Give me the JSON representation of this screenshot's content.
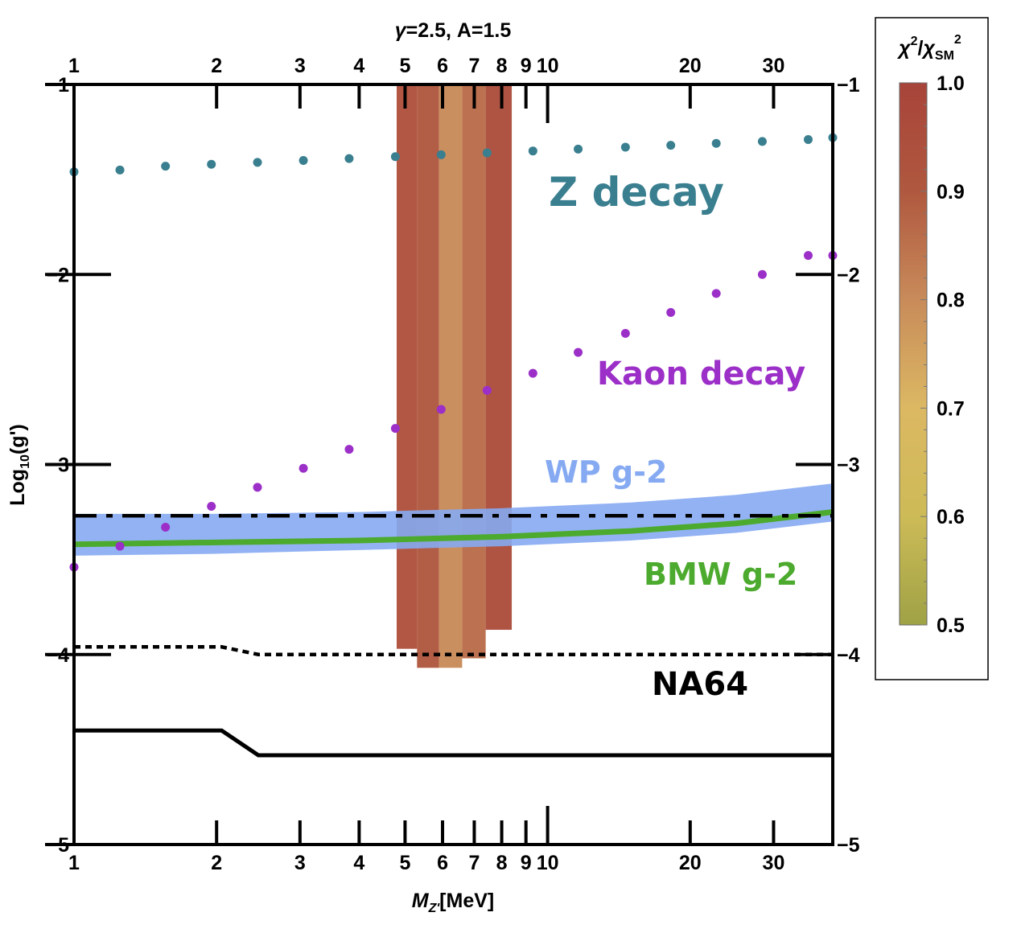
{
  "chart_data": {
    "type": "scatter",
    "title": "γ=2.5, A=1.5",
    "title_math": {
      "symbol": "γ",
      "rest": "=2.5, A=1.5"
    },
    "xlabel": "M_{Z'}[MeV]",
    "xlabel_math": {
      "base": "M",
      "sub": "Z'",
      "rest": "[MeV]"
    },
    "ylabel": "Log10(g')",
    "ylabel_math": {
      "pre": "Log",
      "sub": "10",
      "post": "(g')"
    },
    "x_scale": "log",
    "xlim": [
      1,
      40
    ],
    "ylim": [
      -5,
      -1
    ],
    "x_ticks_labeled": [
      1,
      2,
      3,
      4,
      5,
      6,
      7,
      8,
      9,
      10,
      20,
      30
    ],
    "x_tick_labels": [
      "1",
      "2",
      "3",
      "4",
      "5",
      "6",
      "7",
      "8",
      "9",
      "10",
      "20",
      "30"
    ],
    "y_ticks": [
      -1,
      -2,
      -3,
      -4,
      -5
    ],
    "y_tick_labels": [
      "−1",
      "−2",
      "−3",
      "−4",
      "−5"
    ],
    "colors": {
      "z_decay": "#3a7f8f",
      "kaon_decay": "#9b2fc8",
      "wp_band": "#86aaf2",
      "bmw_line": "#4caa2e",
      "na64": "#000000",
      "heat_high": "#a8443a",
      "heat_mid": "#c0855c",
      "heat_low": "#9fa246"
    },
    "series": [
      {
        "name": "Z decay",
        "kind": "points",
        "x": [
          1.0,
          1.25,
          1.56,
          1.95,
          2.44,
          3.05,
          3.81,
          4.77,
          5.96,
          7.45,
          9.31,
          11.6,
          14.6,
          18.2,
          22.7,
          28.4,
          35.5,
          40.0
        ],
        "y": [
          -1.46,
          -1.45,
          -1.43,
          -1.42,
          -1.41,
          -1.4,
          -1.39,
          -1.38,
          -1.37,
          -1.36,
          -1.35,
          -1.34,
          -1.33,
          -1.32,
          -1.31,
          -1.3,
          -1.29,
          -1.28
        ]
      },
      {
        "name": "Kaon decay",
        "kind": "points",
        "x": [
          1.0,
          1.25,
          1.56,
          1.95,
          2.44,
          3.05,
          3.81,
          4.77,
          5.96,
          7.45,
          9.31,
          11.6,
          14.6,
          18.2,
          22.7,
          28.4,
          35.5,
          40.0
        ],
        "y": [
          -3.54,
          -3.43,
          -3.33,
          -3.22,
          -3.12,
          -3.02,
          -2.92,
          -2.81,
          -2.71,
          -2.61,
          -2.52,
          -2.41,
          -2.31,
          -2.2,
          -2.1,
          -2.0,
          -1.9,
          -1.9
        ]
      },
      {
        "name": "WP g-2",
        "kind": "band",
        "x": [
          1,
          2,
          4,
          8,
          15,
          25,
          40
        ],
        "y_low": [
          -3.48,
          -3.47,
          -3.45,
          -3.43,
          -3.4,
          -3.36,
          -3.3
        ],
        "y_high": [
          -3.26,
          -3.26,
          -3.25,
          -3.23,
          -3.2,
          -3.16,
          -3.1
        ]
      },
      {
        "name": "BMW g-2",
        "kind": "line",
        "x": [
          1,
          2,
          4,
          8,
          15,
          25,
          40
        ],
        "y": [
          -3.42,
          -3.41,
          -3.4,
          -3.38,
          -3.35,
          -3.31,
          -3.25
        ]
      },
      {
        "name": "dash-dot limit",
        "kind": "line",
        "x": [
          1,
          40
        ],
        "y": [
          -3.27,
          -3.27
        ]
      },
      {
        "name": "NA64 (dotted)",
        "kind": "line",
        "x": [
          1,
          2.05,
          2.45,
          40
        ],
        "y": [
          -3.96,
          -3.96,
          -4.0,
          -4.0
        ]
      },
      {
        "name": "NA64",
        "kind": "line",
        "x": [
          1,
          2.05,
          2.45,
          40
        ],
        "y": [
          -4.4,
          -4.4,
          -4.53,
          -4.53
        ]
      }
    ],
    "heatmap": {
      "quantity": "chi^2 / chi_SM^2",
      "columns": [
        {
          "x_min": 4.8,
          "x_max": 5.3,
          "y_min": -3.97,
          "y_max": -1.0,
          "value": 0.93
        },
        {
          "x_min": 5.3,
          "x_max": 5.9,
          "y_min": -4.07,
          "y_max": -1.0,
          "value": 0.9
        },
        {
          "x_min": 5.9,
          "x_max": 6.6,
          "y_min": -4.07,
          "y_max": -1.0,
          "value": 0.8
        },
        {
          "x_min": 6.6,
          "x_max": 7.4,
          "y_min": -4.02,
          "y_max": -1.0,
          "value": 0.86
        },
        {
          "x_min": 7.4,
          "x_max": 8.4,
          "y_min": -3.87,
          "y_max": -1.0,
          "value": 0.95
        }
      ]
    },
    "colorbar": {
      "label": "χ²/χSM²",
      "label_math": {
        "chi": "χ",
        "sup": "2",
        "slash": "/",
        "chi2": "χ",
        "sub": "SM",
        "sup2": "2"
      },
      "min": 0.5,
      "max": 1.0,
      "ticks": [
        1.0,
        0.9,
        0.8,
        0.7,
        0.6,
        0.5
      ],
      "tick_labels": [
        "1.0",
        "0.9",
        "0.8",
        "0.7",
        "0.6",
        "0.5"
      ],
      "gradient": [
        "#9fa246",
        "#cdbb57",
        "#dcb863",
        "#c88b5a",
        "#b0583f",
        "#a8443a"
      ]
    },
    "annotations": [
      {
        "text": "Z decay",
        "series": "Z decay"
      },
      {
        "text": "Kaon decay",
        "series": "Kaon decay"
      },
      {
        "text": "WP g-2",
        "series": "WP g-2"
      },
      {
        "text": "BMW g-2",
        "series": "BMW g-2"
      },
      {
        "text": "NA64",
        "series": "NA64"
      }
    ]
  }
}
